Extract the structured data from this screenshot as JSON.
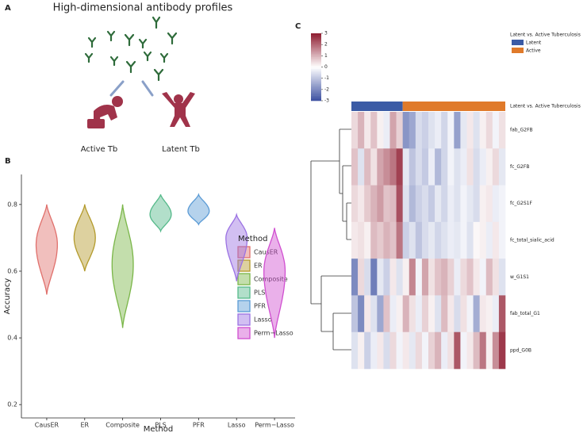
{
  "panels": [
    "A",
    "B",
    "C"
  ],
  "illustration": {
    "title": "High-dimensional antibody profiles",
    "labels": [
      "Active Tb",
      "Latent Tb"
    ]
  },
  "chart_data": [
    {
      "type": "violin",
      "xlabel": "Method",
      "ylabel": "Accuracy",
      "categories": [
        "CausER",
        "ER",
        "Composite",
        "PLS",
        "PFR",
        "Lasso",
        "Perm−Lasso"
      ],
      "series": [
        {
          "name": "CausER",
          "color": "#e0706c",
          "min": 0.53,
          "peak": 0.68,
          "max": 0.8
        },
        {
          "name": "ER",
          "color": "#b39a2b",
          "min": 0.6,
          "peak": 0.7,
          "max": 0.8
        },
        {
          "name": "Composite",
          "color": "#7ab648",
          "min": 0.43,
          "peak": 0.62,
          "max": 0.8
        },
        {
          "name": "PLS",
          "color": "#55b98a",
          "min": 0.72,
          "peak": 0.77,
          "max": 0.83
        },
        {
          "name": "PFR",
          "color": "#5b9bd5",
          "min": 0.74,
          "peak": 0.78,
          "max": 0.83
        },
        {
          "name": "Lasso",
          "color": "#9b72e3",
          "min": 0.57,
          "peak": 0.7,
          "max": 0.77
        },
        {
          "name": "Perm−Lasso",
          "color": "#d04fd0",
          "min": 0.4,
          "peak": 0.6,
          "max": 0.73
        }
      ],
      "legend_title": "Method",
      "ylim": [
        0.16,
        0.89
      ],
      "yticks": [
        0.2,
        0.4,
        0.6,
        0.8
      ]
    },
    {
      "type": "heatmap",
      "rows": [
        "fab_G2FB",
        "fc_G2FB",
        "fc_G2S1F",
        "fc_total_sialic_acid",
        "w_G1S1",
        "fab_total_G1",
        "ppd_G0B"
      ],
      "values": [
        [
          0.5,
          1,
          0.3,
          0.8,
          0.2,
          -0.3,
          1.2,
          0.6,
          -1.8,
          -1.5,
          -0.6,
          -0.8,
          -0.5,
          -0.3,
          -0.7,
          -0.2,
          -1.6,
          -0.4,
          0.3,
          -0.5,
          0.2,
          0.5,
          -0.2,
          0.4
        ],
        [
          0.8,
          -0.5,
          0.9,
          0.4,
          1.2,
          1.5,
          1.8,
          2.5,
          -0.4,
          -1,
          -0.6,
          -0.9,
          -0.3,
          -1.2,
          -0.7,
          -0.2,
          -0.5,
          -0.3,
          0.4,
          -0.6,
          -0.3,
          0.2,
          0.5,
          -0.4
        ],
        [
          0.5,
          0.3,
          0.7,
          1,
          1.3,
          0.8,
          0.9,
          2.3,
          -0.5,
          -1.2,
          -0.8,
          -0.6,
          -0.9,
          -0.4,
          -0.7,
          -0.3,
          -0.5,
          -0.2,
          -0.4,
          -0.6,
          0.2,
          0.3,
          -0.3,
          -0.2
        ],
        [
          0.3,
          0.4,
          0.2,
          0.9,
          0.7,
          1,
          0.8,
          1.8,
          -0.8,
          -0.5,
          -1,
          -0.6,
          -0.4,
          -0.7,
          -0.5,
          -0.3,
          -0.4,
          -0.2,
          -0.5,
          0.1,
          0.2,
          -0.3,
          0.3,
          -0.2
        ],
        [
          -2,
          0.5,
          -0.6,
          -2.2,
          -0.4,
          -0.8,
          0.3,
          -0.5,
          0.2,
          1.6,
          -0.2,
          1.2,
          0.4,
          0.8,
          1,
          0.6,
          -0.3,
          0.5,
          0.8,
          0.3,
          -0.2,
          0.9,
          0.4,
          -0.5
        ],
        [
          -1,
          -2,
          0.3,
          -0.5,
          -1.5,
          0.8,
          -0.3,
          0.2,
          1,
          0.4,
          -0.3,
          0.6,
          0.2,
          -0.5,
          0.9,
          0.3,
          -0.6,
          0.4,
          -0.2,
          -1.4,
          0.3,
          0.2,
          -0.3,
          2.2
        ],
        [
          -0.5,
          0.2,
          -0.8,
          -0.3,
          0.3,
          -0.6,
          0.5,
          -0.2,
          0.3,
          -0.4,
          0.5,
          -0.2,
          0.6,
          1,
          -0.3,
          0.4,
          2.2,
          -0.2,
          0.3,
          0.9,
          1.8,
          0.2,
          1.5,
          2.6
        ]
      ],
      "annotation": {
        "label": "Latent vs. Active Tuberculosis",
        "legend_title": "Latent vs. Active Tuberculosis",
        "groups": [
          {
            "name": "Latent",
            "color": "#3b5ba5",
            "count": 8
          },
          {
            "name": "Active",
            "color": "#e07a2a",
            "count": 16
          }
        ]
      },
      "colormap": {
        "low": "#3b4fa0",
        "mid": "#ffffff",
        "high": "#8e1b2f"
      },
      "clim": [
        -3,
        3
      ],
      "cticks": [
        -3,
        -2,
        -1,
        0,
        1,
        2,
        3
      ]
    }
  ]
}
